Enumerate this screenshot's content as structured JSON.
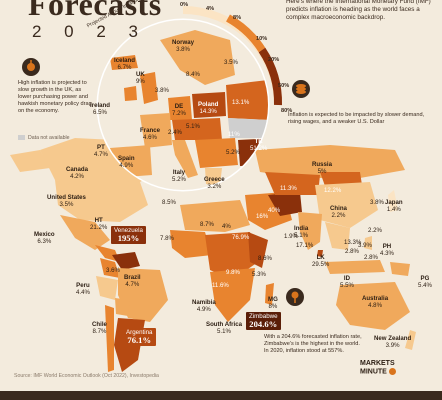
{
  "header": {
    "title": "Forecasts",
    "year": "2 0 2 3",
    "intro": "Here’s where the International Monetary Fund (IMF) predicts inflation is heading as the world faces a complex macroeconomic backdrop."
  },
  "legend": {
    "title": "Projected Annual Inflation % Change",
    "ticks": [
      "0%",
      "4%",
      "8%",
      "10%",
      "20%",
      "50%",
      "80%"
    ],
    "not_available": "Data not available",
    "colors": [
      "#fbe4c4",
      "#f6c98e",
      "#f0a95c",
      "#e8842f",
      "#d4651e",
      "#b64a12",
      "#8a300b"
    ]
  },
  "notes": {
    "uk": "High inflation is projected to slow growth in the UK, as lower purchasing power and hawkish monetary policy drag on the economy.",
    "china": "Inflation is expected to be impacted by slower demand, rising wages, and a weaker U.S. Dollar",
    "zimbabwe": "With a 204.6% forecasted inflation rate, Zimbabwe’s is the highest in the world. In 2020, inflation stood at 557%."
  },
  "europe": [
    {
      "name": "Iceland",
      "value": "6.7%"
    },
    {
      "name": "Norway",
      "value": "3.8%"
    },
    {
      "name": "UK",
      "value": "9%"
    },
    {
      "name": "Ireland",
      "value": "6.5%"
    },
    {
      "name": "DE",
      "value": "7.2%"
    },
    {
      "name": "Poland",
      "value": "14.3%"
    },
    {
      "name": "France",
      "value": "4.6%"
    },
    {
      "name": "PT",
      "value": "4.7%"
    },
    {
      "name": "Spain",
      "value": "4.9%"
    },
    {
      "name": "Italy",
      "value": "5.2%"
    },
    {
      "name": "Greece",
      "value": "3.2%"
    },
    {
      "name": "TR",
      "value": "51.2%"
    }
  ],
  "europe_extra": [
    "8.4%",
    "3.5%",
    "3.8%",
    "13.1%",
    "5.1%",
    "2.4%",
    "11%",
    "5.2%"
  ],
  "world": [
    {
      "name": "Canada",
      "value": "4.2%"
    },
    {
      "name": "United States",
      "value": "3.5%"
    },
    {
      "name": "Mexico",
      "value": "6.3%"
    },
    {
      "name": "HT",
      "value": "21.2%"
    },
    {
      "name": "Peru",
      "value": "4.4%"
    },
    {
      "name": "Brazil",
      "value": "4.7%"
    },
    {
      "name": "Chile",
      "value": "8.7%"
    },
    {
      "name": "Russia",
      "value": "5%"
    },
    {
      "name": "China",
      "value": "2.2%"
    },
    {
      "name": "Japan",
      "value": "1.4%"
    },
    {
      "name": "India",
      "value": "5.1%"
    },
    {
      "name": "LK",
      "value": "29.5%"
    },
    {
      "name": "ID",
      "value": "5.5%"
    },
    {
      "name": "PH",
      "value": "4.3%"
    },
    {
      "name": "PG",
      "value": "5.4%"
    },
    {
      "name": "Australia",
      "value": "4.8%"
    },
    {
      "name": "New Zealand",
      "value": "3.9%"
    },
    {
      "name": "Namibia",
      "value": "4.9%"
    },
    {
      "name": "South Africa",
      "value": "5.1%"
    },
    {
      "name": "MG",
      "value": "8%"
    }
  ],
  "world_extra": [
    "8.5%",
    "11.3%",
    "12.2%",
    "40%",
    "8.7%",
    "4%",
    "16%",
    "76.9%",
    "3.6%",
    "7.8%",
    "9.8%",
    "11.6%",
    "5.3%",
    "8.6%",
    "1.9%",
    "17.1%",
    "13.3%",
    "2.8%",
    "3.9%",
    "2.8%",
    "3.8%",
    "2.2%"
  ],
  "callouts": {
    "venezuela": {
      "name": "Venezuela",
      "value": "195%"
    },
    "argentina": {
      "name": "Argentina",
      "value": "76.1%"
    },
    "zimbabwe": {
      "name": "Zimbabwe",
      "value": "204.6%"
    }
  },
  "source": "Source: IMF World Economic Outlook (Oct 2022), Investopedia",
  "brand": {
    "line1": "MARKETS",
    "line2": "MINUTE"
  }
}
